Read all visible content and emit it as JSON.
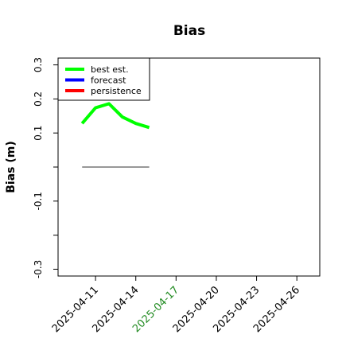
{
  "chart_data": {
    "type": "line",
    "title": "Bias",
    "ylabel": "Bias (m)",
    "x": [
      "2025-04-10",
      "2025-04-11",
      "2025-04-12",
      "2025-04-13",
      "2025-04-14",
      "2025-04-15"
    ],
    "series": [
      {
        "name": "best est.",
        "color": "#00ff00",
        "values": [
          0.128,
          0.174,
          0.186,
          0.147,
          0.128,
          0.116
        ]
      },
      {
        "name": "forecast",
        "color": "#0000ff",
        "values": [
          null,
          null,
          null,
          null,
          null,
          null
        ]
      },
      {
        "name": "persistence",
        "color": "#ff0000",
        "values": [
          null,
          null,
          null,
          null,
          null,
          null
        ]
      }
    ],
    "reference_line": {
      "y": 0,
      "color": "#777777"
    },
    "xlim": [
      "2025-04-08T05:00",
      "2025-04-27T17:00"
    ],
    "xticks": [
      "2025-04-11",
      "2025-04-14",
      "2025-04-17",
      "2025-04-20",
      "2025-04-23",
      "2025-04-26"
    ],
    "highlight_xtick_index": 2,
    "highlight_color": "#228b22",
    "ylim": [
      -0.32,
      0.32
    ],
    "yticks": [
      0.3,
      0.2,
      0.1,
      {
        "value": 0,
        "label": null
      },
      -0.1,
      {
        "value": -0.2,
        "label": null
      },
      -0.3
    ],
    "legend": "upper left"
  }
}
